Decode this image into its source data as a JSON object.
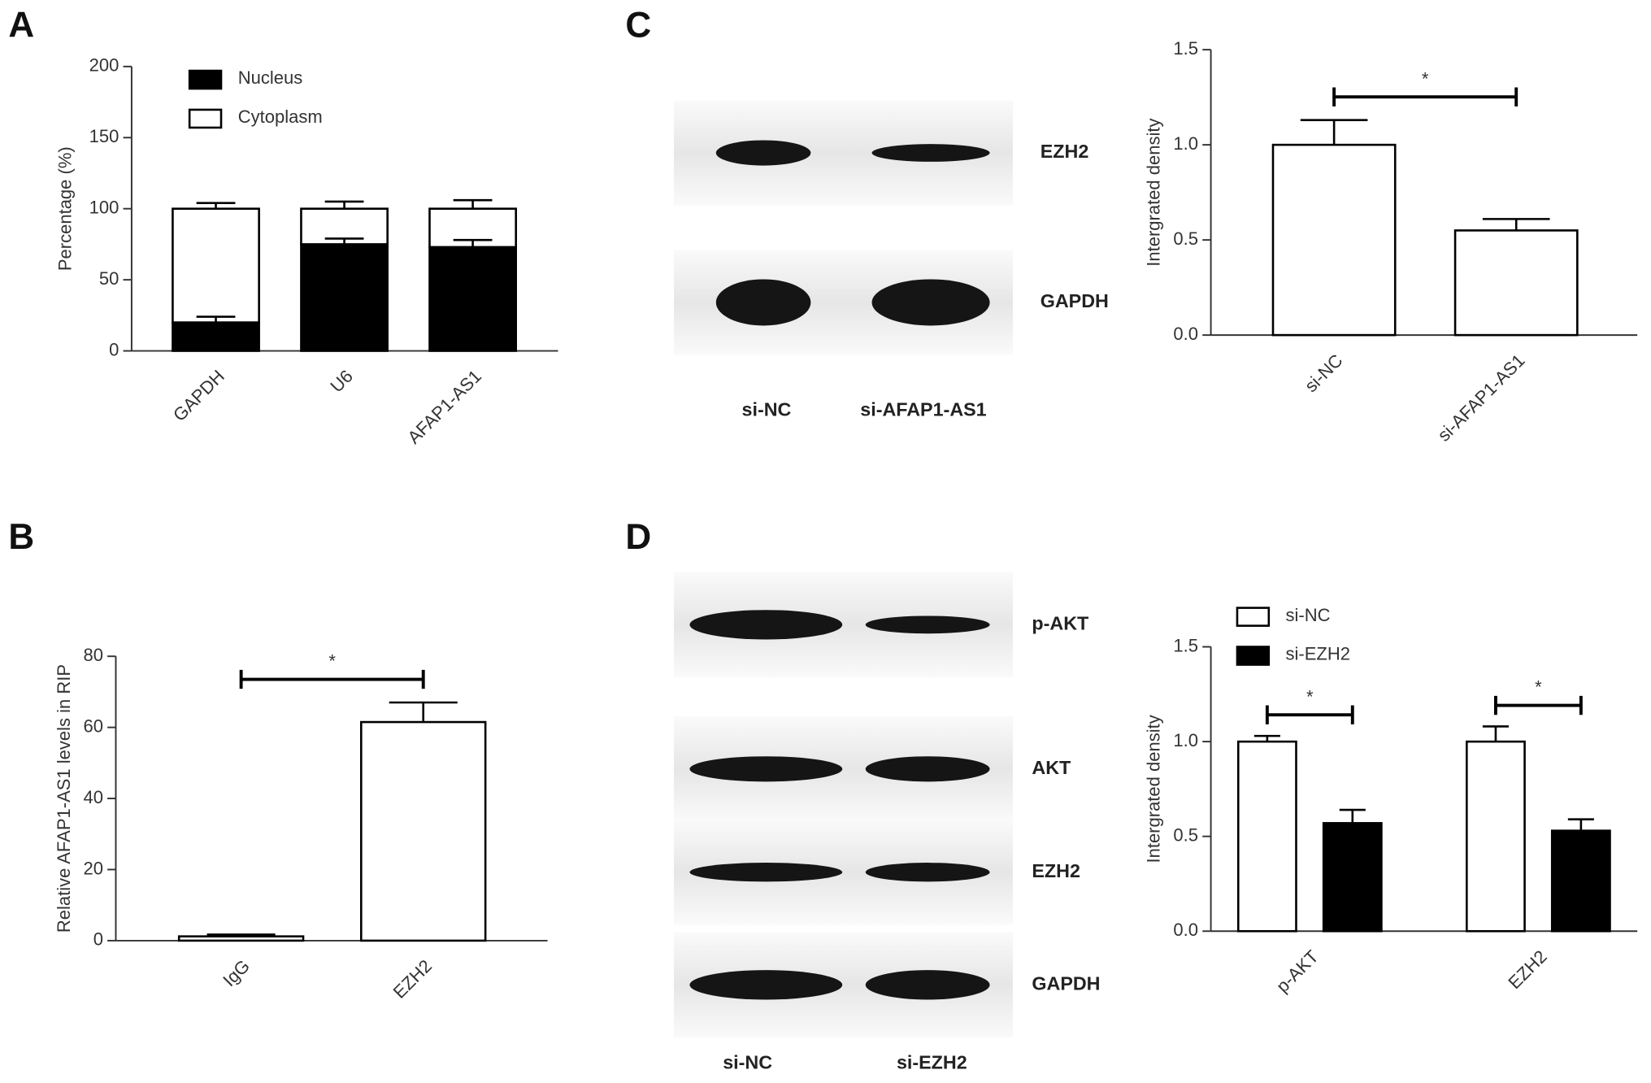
{
  "panel_labels": [
    "A",
    "B",
    "C",
    "D"
  ],
  "blots": [
    {
      "bands": [
        "EZH2",
        "GAPDH"
      ],
      "lanes": [
        "si-NC",
        "si-AFAP1-AS1"
      ]
    },
    {
      "bands": [
        "p-AKT",
        "AKT",
        "EZH2",
        "GAPDH"
      ],
      "lanes": [
        "si-NC",
        "si-EZH2"
      ]
    }
  ],
  "chart_data": [
    {
      "type": "stacked_bar",
      "y_label": "Percentage (%)",
      "categories": [
        "GAPDH",
        "U6",
        "AFAP1-AS1"
      ],
      "series": [
        {
          "name": "Nucleus",
          "color": "#000000",
          "values": [
            20,
            75,
            73
          ],
          "errors": [
            4,
            4,
            5
          ]
        },
        {
          "name": "Cytoplasm",
          "color": "#ffffff",
          "values": [
            80,
            25,
            27
          ],
          "errors": [
            4,
            5,
            6
          ]
        }
      ],
      "ylim": [
        0,
        200
      ],
      "yticks": [
        0,
        50,
        100,
        150,
        200
      ],
      "legend": "upper left"
    },
    {
      "type": "bar",
      "y_label": "Relative AFAP1-AS1 levels in RIP",
      "categories": [
        "IgG",
        "EZH2"
      ],
      "values": [
        1.2,
        61.5
      ],
      "errors": [
        0.5,
        5.5
      ],
      "color": "#ffffff",
      "ylim": [
        0,
        80
      ],
      "yticks": [
        0,
        20,
        40,
        60,
        80
      ],
      "annotations": [
        "*"
      ]
    },
    {
      "type": "bar",
      "y_label": "Intergrated density",
      "categories": [
        "si-NC",
        "si-AFAP1-AS1"
      ],
      "values": [
        1.0,
        0.55
      ],
      "errors": [
        0.13,
        0.06
      ],
      "color": "#ffffff",
      "ylim": [
        0,
        1.5
      ],
      "yticks": [
        {
          "value": 0,
          "label": "0.0"
        },
        {
          "value": 0.5,
          "label": "0.5"
        },
        {
          "value": 1,
          "label": "1.0"
        },
        {
          "value": 1.5,
          "label": "1.5"
        }
      ],
      "annotations": [
        "*"
      ]
    },
    {
      "type": "grouped_bar",
      "y_label": "Intergrated density",
      "categories": [
        "p-AKT",
        "EZH2"
      ],
      "series": [
        {
          "name": "si-NC",
          "color": "#ffffff",
          "values": [
            1.0,
            1.0
          ],
          "errors": [
            0.03,
            0.08
          ]
        },
        {
          "name": "si-EZH2",
          "color": "#000000",
          "values": [
            0.57,
            0.53
          ],
          "errors": [
            0.07,
            0.06
          ]
        }
      ],
      "ylim": [
        0,
        1.5
      ],
      "yticks": [
        {
          "value": 0,
          "label": "0.0"
        },
        {
          "value": 0.5,
          "label": "0.5"
        },
        {
          "value": 1,
          "label": "1.0"
        },
        {
          "value": 1.5,
          "label": "1.5"
        }
      ],
      "legend": "upper left",
      "annotations": [
        "*",
        "*"
      ]
    }
  ]
}
